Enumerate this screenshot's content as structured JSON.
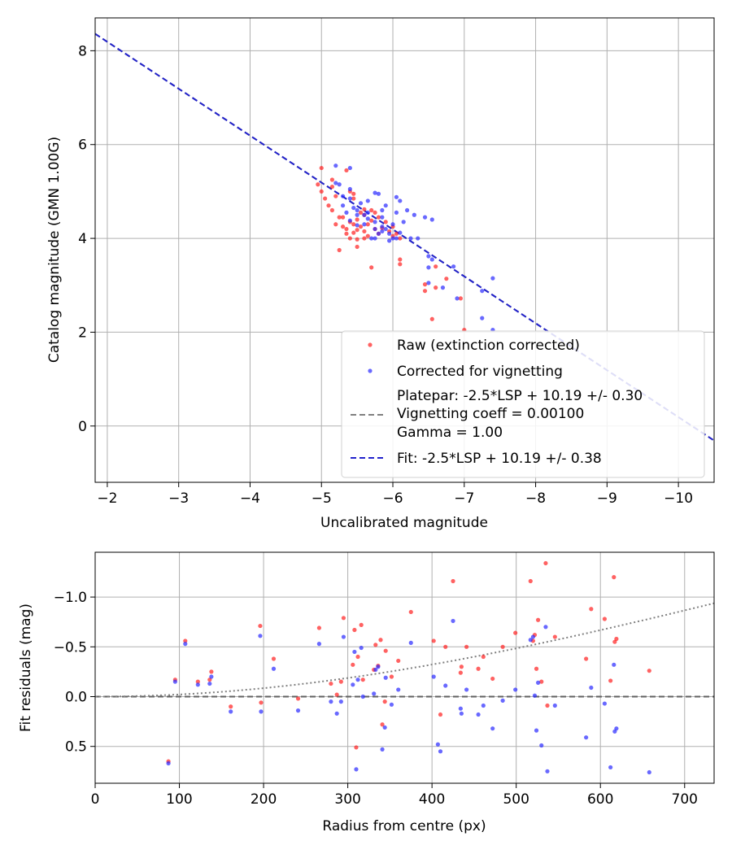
{
  "chart_data": [
    {
      "type": "scatter",
      "xlabel": "Uncalibrated magnitude",
      "ylabel": "Catalog magnitude (GMN 1.00G)",
      "xlim": [
        -1.83,
        -10.5
      ],
      "ylim": [
        8.7,
        -1.2
      ],
      "x_ticks": [
        -2,
        -3,
        -4,
        -5,
        -6,
        -7,
        -8,
        -9,
        -10
      ],
      "x_tick_labels": [
        "−2",
        "−3",
        "−4",
        "−5",
        "−6",
        "−7",
        "−8",
        "−9",
        "−10"
      ],
      "y_ticks": [
        0,
        2,
        4,
        6,
        8
      ],
      "y_tick_labels": [
        "0",
        "2",
        "4",
        "6",
        "8"
      ],
      "grid": true,
      "legend_position": "bottom-right",
      "legend": [
        {
          "label": "Raw (extinction corrected)",
          "kind": "dot",
          "color": "#ff2020"
        },
        {
          "label": "Corrected for vignetting",
          "kind": "dot",
          "color": "#2a2aff"
        },
        {
          "label": "Platepar: -2.5*LSP + 10.19 +/- 0.30",
          "label2": "Vignetting coeff = 0.00100",
          "label3": "Gamma = 1.00",
          "kind": "dash",
          "color": "#808080"
        },
        {
          "label": "Fit: -2.5*LSP + 10.19 +/- 0.38",
          "kind": "dash",
          "color": "#2222cc"
        }
      ],
      "fit_line": {
        "slope": 1.0,
        "intercept": 10.19,
        "color": "#2222cc"
      },
      "platepar_line": {
        "slope": 1.0,
        "intercept": 10.19,
        "color": "#808080"
      },
      "series": [
        {
          "name": "Raw (extinction corrected)",
          "color": "#ff2020",
          "points": [
            [
              -7.0,
              2.05
            ],
            [
              -6.55,
              2.28
            ],
            [
              -6.95,
              2.72
            ],
            [
              -6.45,
              2.88
            ],
            [
              -6.45,
              3.02
            ],
            [
              -6.6,
              2.95
            ],
            [
              -6.75,
              3.14
            ],
            [
              -6.1,
              3.45
            ],
            [
              -5.7,
              3.38
            ],
            [
              -6.1,
              3.55
            ],
            [
              -6.6,
              3.4
            ],
            [
              -5.25,
              3.75
            ],
            [
              -5.5,
              3.82
            ],
            [
              -5.4,
              4.0
            ],
            [
              -5.5,
              3.98
            ],
            [
              -5.6,
              4.0
            ],
            [
              -5.45,
              4.12
            ],
            [
              -5.5,
              4.18
            ],
            [
              -5.55,
              4.25
            ],
            [
              -5.65,
              4.3
            ],
            [
              -5.75,
              4.2
            ],
            [
              -5.85,
              4.22
            ],
            [
              -6.0,
              4.05
            ],
            [
              -6.1,
              4.0
            ],
            [
              -5.35,
              4.2
            ],
            [
              -5.4,
              4.35
            ],
            [
              -5.5,
              4.4
            ],
            [
              -5.6,
              4.5
            ],
            [
              -5.7,
              4.6
            ],
            [
              -5.3,
              4.45
            ],
            [
              -5.15,
              4.6
            ],
            [
              -5.1,
              4.7
            ],
            [
              -5.2,
              4.9
            ],
            [
              -5.05,
              4.85
            ],
            [
              -5.0,
              5.0
            ],
            [
              -4.95,
              5.15
            ],
            [
              -5.15,
              5.1
            ],
            [
              -5.45,
              4.95
            ],
            [
              -5.45,
              4.85
            ],
            [
              -5.15,
              5.25
            ],
            [
              -5.0,
              5.5
            ],
            [
              -5.35,
              5.45
            ],
            [
              -5.75,
              4.55
            ],
            [
              -5.9,
              4.35
            ],
            [
              -5.8,
              4.45
            ],
            [
              -6.0,
              4.25
            ],
            [
              -6.05,
              4.1
            ],
            [
              -5.6,
              4.15
            ],
            [
              -5.65,
              4.05
            ],
            [
              -5.2,
              4.3
            ],
            [
              -5.35,
              4.1
            ],
            [
              -5.55,
              4.55
            ],
            [
              -5.4,
              5.0
            ],
            [
              -5.3,
              4.25
            ],
            [
              -5.7,
              4.38
            ],
            [
              -5.25,
              4.45
            ],
            [
              -5.45,
              4.3
            ],
            [
              -5.6,
              4.62
            ],
            [
              -5.8,
              4.1
            ],
            [
              -5.95,
              4.15
            ]
          ]
        },
        {
          "name": "Corrected for vignetting",
          "color": "#2a2aff",
          "points": [
            [
              -7.4,
              2.05
            ],
            [
              -7.25,
              2.3
            ],
            [
              -6.9,
              2.72
            ],
            [
              -7.25,
              2.88
            ],
            [
              -7.4,
              3.15
            ],
            [
              -6.7,
              2.95
            ],
            [
              -6.5,
              3.05
            ],
            [
              -6.5,
              3.38
            ],
            [
              -6.85,
              3.4
            ],
            [
              -6.5,
              3.62
            ],
            [
              -6.55,
              3.55
            ],
            [
              -6.25,
              4.0
            ],
            [
              -6.35,
              4.0
            ],
            [
              -6.05,
              4.0
            ],
            [
              -6.1,
              4.12
            ],
            [
              -5.95,
              4.1
            ],
            [
              -5.85,
              4.25
            ],
            [
              -5.75,
              4.2
            ],
            [
              -6.15,
              4.35
            ],
            [
              -6.45,
              4.45
            ],
            [
              -6.55,
              4.4
            ],
            [
              -6.2,
              4.6
            ],
            [
              -6.05,
              4.55
            ],
            [
              -6.0,
              4.3
            ],
            [
              -5.85,
              4.45
            ],
            [
              -6.1,
              4.8
            ],
            [
              -6.05,
              4.88
            ],
            [
              -5.8,
              4.95
            ],
            [
              -5.75,
              4.97
            ],
            [
              -5.65,
              4.55
            ],
            [
              -5.5,
              4.5
            ],
            [
              -5.4,
              4.38
            ],
            [
              -5.35,
              4.55
            ],
            [
              -5.55,
              4.75
            ],
            [
              -5.4,
              4.85
            ],
            [
              -5.4,
              5.05
            ],
            [
              -5.25,
              5.15
            ],
            [
              -5.2,
              5.55
            ],
            [
              -5.4,
              5.5
            ],
            [
              -5.2,
              5.18
            ],
            [
              -5.75,
              4.0
            ],
            [
              -5.8,
              4.1
            ],
            [
              -5.6,
              4.3
            ],
            [
              -5.65,
              4.42
            ],
            [
              -5.95,
              3.95
            ],
            [
              -5.7,
              4.0
            ],
            [
              -5.5,
              4.6
            ],
            [
              -5.3,
              4.7
            ],
            [
              -5.85,
              4.6
            ],
            [
              -6.3,
              4.5
            ],
            [
              -5.9,
              4.2
            ],
            [
              -5.5,
              4.28
            ],
            [
              -5.85,
              4.15
            ],
            [
              -6.0,
              4.0
            ],
            [
              -5.6,
              4.5
            ],
            [
              -5.45,
              4.65
            ],
            [
              -5.9,
              4.7
            ],
            [
              -5.75,
              4.35
            ],
            [
              -5.65,
              4.8
            ],
            [
              -5.3,
              4.9
            ]
          ]
        }
      ]
    },
    {
      "type": "scatter",
      "xlabel": "Radius from centre (px)",
      "ylabel": "Fit residuals (mag)",
      "xlim": [
        0,
        735
      ],
      "ylim": [
        -1.45,
        0.87
      ],
      "x_ticks": [
        0,
        100,
        200,
        300,
        400,
        500,
        600,
        700
      ],
      "x_tick_labels": [
        "0",
        "100",
        "200",
        "300",
        "400",
        "500",
        "600",
        "700"
      ],
      "y_ticks": [
        0.5,
        0.0,
        -0.5,
        -1.0
      ],
      "y_tick_labels": [
        "0.5",
        "0.0",
        "−0.5",
        "−1.0"
      ],
      "grid": true,
      "zero_line": {
        "y": 0,
        "color": "#606060"
      },
      "vignetting_curve": {
        "coeff": 0.001,
        "color": "#808080"
      },
      "series": [
        {
          "name": "Raw (extinction corrected)",
          "color": "#ff2020",
          "points": [
            [
              87,
              0.65
            ],
            [
              95,
              -0.17
            ],
            [
              107,
              -0.56
            ],
            [
              122,
              -0.15
            ],
            [
              136,
              -0.17
            ],
            [
              138,
              -0.25
            ],
            [
              161,
              0.1
            ],
            [
              197,
              0.06
            ],
            [
              196,
              -0.71
            ],
            [
              212,
              -0.38
            ],
            [
              241,
              0.02
            ],
            [
              266,
              -0.69
            ],
            [
              280,
              -0.13
            ],
            [
              287,
              -0.02
            ],
            [
              292,
              -0.15
            ],
            [
              295,
              -0.79
            ],
            [
              306,
              -0.32
            ],
            [
              308,
              -0.67
            ],
            [
              310,
              0.51
            ],
            [
              312,
              -0.4
            ],
            [
              316,
              -0.72
            ],
            [
              318,
              -0.17
            ],
            [
              331,
              -0.27
            ],
            [
              333,
              -0.52
            ],
            [
              336,
              -0.31
            ],
            [
              339,
              -0.57
            ],
            [
              341,
              0.28
            ],
            [
              344,
              0.05
            ],
            [
              345,
              -0.46
            ],
            [
              352,
              -0.2
            ],
            [
              360,
              -0.36
            ],
            [
              375,
              -0.85
            ],
            [
              402,
              -0.56
            ],
            [
              410,
              0.18
            ],
            [
              416,
              -0.5
            ],
            [
              425,
              -1.16
            ],
            [
              434,
              -0.24
            ],
            [
              435,
              -0.3
            ],
            [
              441,
              -0.5
            ],
            [
              455,
              -0.28
            ],
            [
              461,
              -0.4
            ],
            [
              472,
              -0.18
            ],
            [
              484,
              -0.5
            ],
            [
              499,
              -0.64
            ],
            [
              517,
              -1.16
            ],
            [
              520,
              -0.56
            ],
            [
              522,
              -0.62
            ],
            [
              524,
              -0.28
            ],
            [
              526,
              -0.77
            ],
            [
              530,
              -0.15
            ],
            [
              535,
              -1.34
            ],
            [
              537,
              0.09
            ],
            [
              546,
              -0.6
            ],
            [
              583,
              -0.38
            ],
            [
              589,
              -0.88
            ],
            [
              605,
              -0.78
            ],
            [
              612,
              -0.16
            ],
            [
              616,
              -1.2
            ],
            [
              617,
              -0.55
            ],
            [
              619,
              -0.58
            ],
            [
              658,
              -0.26
            ]
          ]
        },
        {
          "name": "Corrected for vignetting",
          "color": "#2a2aff",
          "points": [
            [
              87,
              0.67
            ],
            [
              95,
              -0.15
            ],
            [
              107,
              -0.53
            ],
            [
              122,
              -0.12
            ],
            [
              136,
              -0.13
            ],
            [
              138,
              -0.2
            ],
            [
              161,
              0.15
            ],
            [
              197,
              0.15
            ],
            [
              196,
              -0.61
            ],
            [
              212,
              -0.28
            ],
            [
              241,
              0.14
            ],
            [
              266,
              -0.53
            ],
            [
              280,
              0.05
            ],
            [
              287,
              0.17
            ],
            [
              292,
              0.05
            ],
            [
              295,
              -0.6
            ],
            [
              306,
              -0.12
            ],
            [
              308,
              -0.45
            ],
            [
              310,
              0.73
            ],
            [
              312,
              -0.17
            ],
            [
              316,
              -0.49
            ],
            [
              318,
              0.0
            ],
            [
              331,
              -0.03
            ],
            [
              333,
              -0.27
            ],
            [
              336,
              -0.3
            ],
            [
              341,
              0.53
            ],
            [
              344,
              0.31
            ],
            [
              345,
              -0.19
            ],
            [
              352,
              0.08
            ],
            [
              360,
              -0.07
            ],
            [
              375,
              -0.54
            ],
            [
              402,
              -0.2
            ],
            [
              407,
              0.48
            ],
            [
              410,
              0.55
            ],
            [
              416,
              -0.11
            ],
            [
              425,
              -0.76
            ],
            [
              434,
              0.12
            ],
            [
              435,
              0.17
            ],
            [
              441,
              -0.07
            ],
            [
              455,
              0.18
            ],
            [
              461,
              0.09
            ],
            [
              472,
              0.32
            ],
            [
              484,
              0.04
            ],
            [
              499,
              -0.07
            ],
            [
              517,
              -0.57
            ],
            [
              520,
              -0.6
            ],
            [
              522,
              -0.01
            ],
            [
              524,
              0.34
            ],
            [
              526,
              -0.14
            ],
            [
              530,
              0.49
            ],
            [
              535,
              -0.7
            ],
            [
              537,
              0.75
            ],
            [
              546,
              0.09
            ],
            [
              583,
              0.41
            ],
            [
              589,
              -0.09
            ],
            [
              605,
              0.07
            ],
            [
              612,
              0.71
            ],
            [
              616,
              -0.32
            ],
            [
              617,
              0.35
            ],
            [
              619,
              0.32
            ],
            [
              658,
              0.76
            ]
          ]
        }
      ]
    }
  ]
}
